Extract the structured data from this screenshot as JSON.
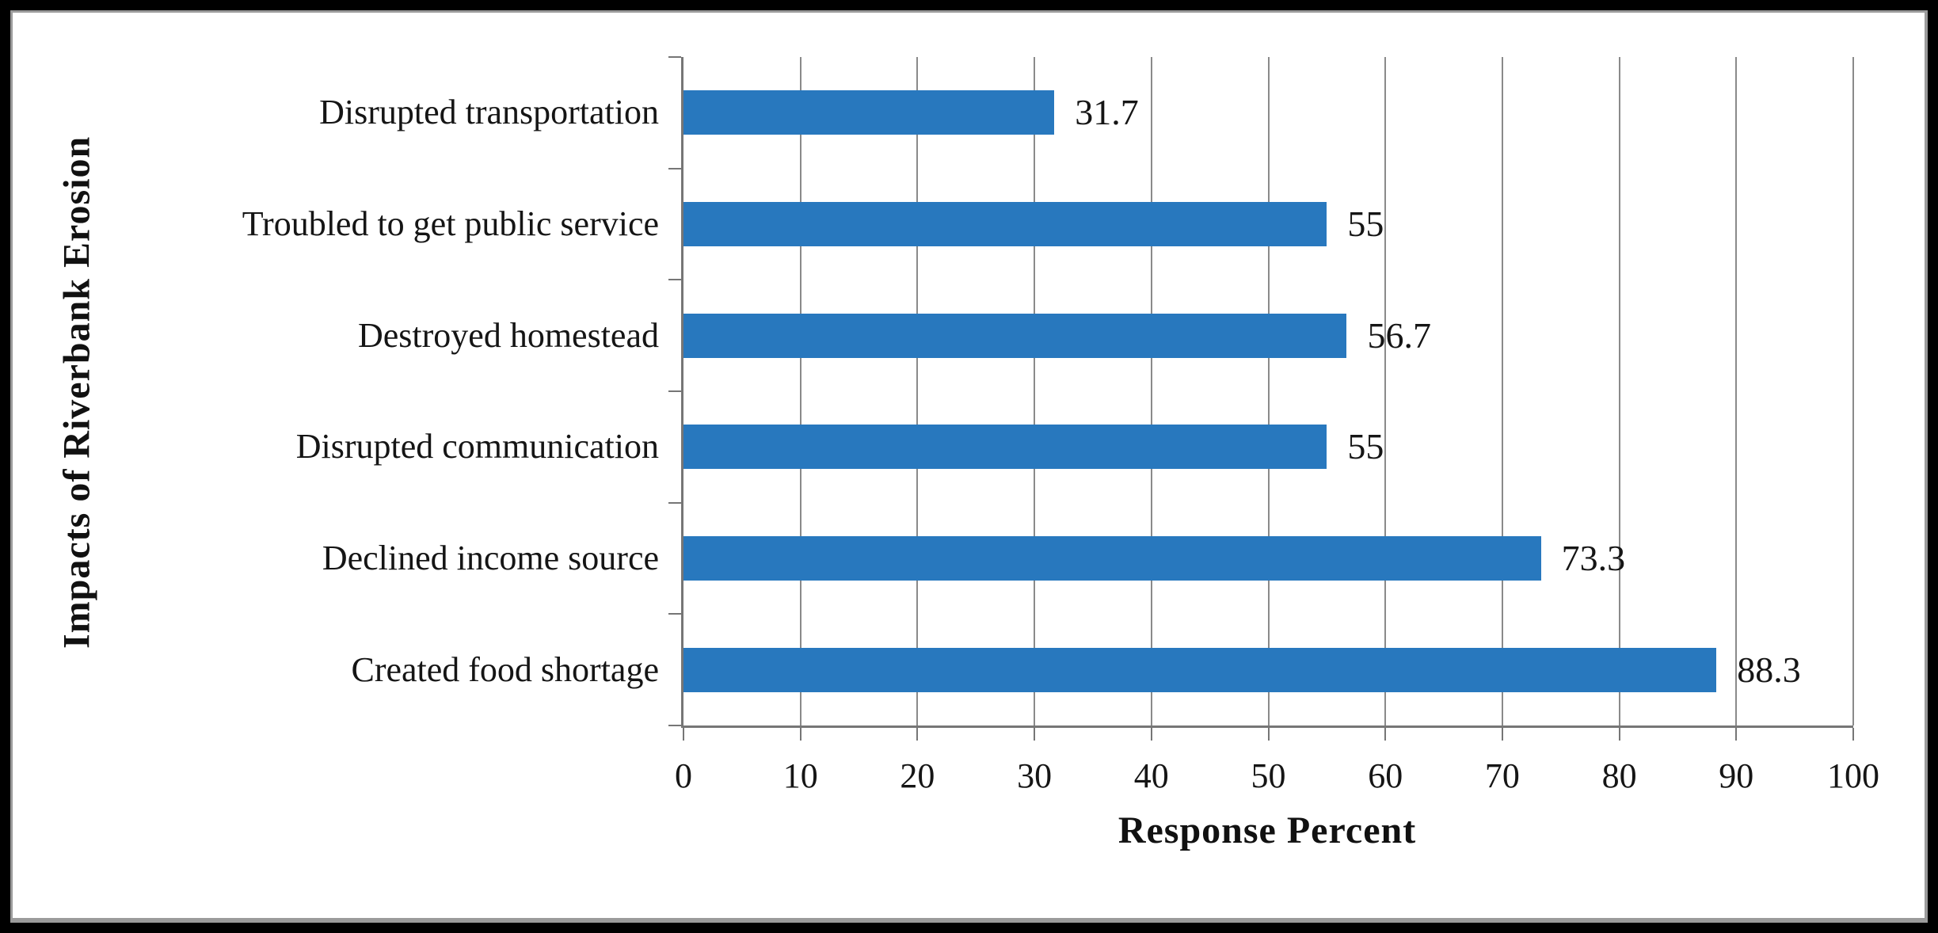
{
  "chart_data": {
    "type": "bar",
    "orientation": "horizontal",
    "title": "",
    "xlabel": "Response Percent",
    "ylabel": "Impacts of Riverbank Erosion",
    "categories": [
      "Disrupted transportation",
      "Troubled to get public service",
      "Destroyed homestead",
      "Disrupted communication",
      "Declined income source",
      "Created food shortage"
    ],
    "values": [
      31.7,
      55,
      56.7,
      55,
      73.3,
      88.3
    ],
    "value_labels": [
      "31.7",
      "55",
      "56.7",
      "55",
      "73.3",
      "88.3"
    ],
    "xlim": [
      0,
      100
    ],
    "xticks": [
      0,
      10,
      20,
      30,
      40,
      50,
      60,
      70,
      80,
      90,
      100
    ],
    "grid": "vertical-gridlines-on",
    "legend_position": "none",
    "bar_color": "#2878be",
    "gridline_color": "#8a8a8a",
    "axis_color": "#767676",
    "text_color": "#151515",
    "frame_color": "#000000"
  }
}
